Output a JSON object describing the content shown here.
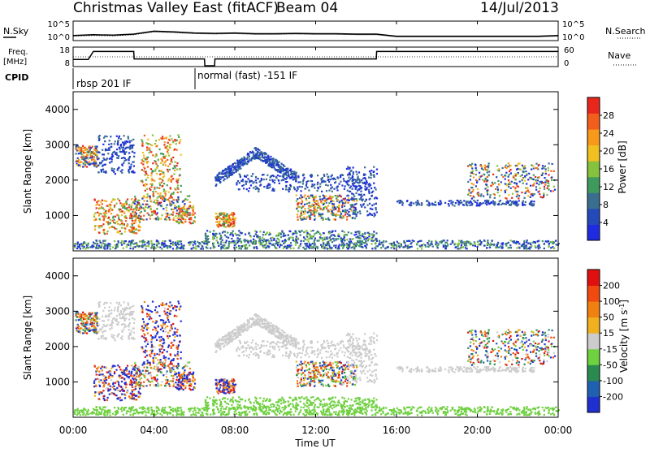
{
  "header": {
    "title": "Christmas Valley East (fitACF)",
    "beam": "Beam 04",
    "date": "14/Jul/2013"
  },
  "status_panel": {
    "left_label": "N.Sky",
    "left_ticks": [
      "10^5",
      "10^0"
    ],
    "right_label": "N.Search",
    "right_ticks": [
      "10^5",
      "10^0"
    ]
  },
  "freq_panel": {
    "left_label_line1": "Freq.",
    "left_label_line2": "[MHz]",
    "left_ticks": [
      "18",
      "8"
    ],
    "right_label": "Nave",
    "right_ticks": [
      "60",
      "0"
    ]
  },
  "cpid": {
    "label": "CPID",
    "segments": [
      {
        "text": "rbsp 201 IF"
      },
      {
        "text": "normal (fast) -151 IF"
      }
    ]
  },
  "x_axis": {
    "title": "Time UT",
    "tick_labels": [
      "00:00",
      "04:00",
      "08:00",
      "12:00",
      "16:00",
      "20:00",
      "00:00"
    ]
  },
  "chart_data": [
    {
      "type": "line",
      "title": "Christmas Valley East (fitACF)",
      "series": [
        {
          "name": "N.Sky",
          "x": [
            "00:00",
            "01:00",
            "02:00",
            "03:00",
            "04:00",
            "05:00",
            "06:00",
            "07:00",
            "08:00",
            "09:00",
            "10:00",
            "11:00",
            "12:00",
            "13:00",
            "14:00",
            "15:00",
            "16:00",
            "17:00",
            "18:00",
            "19:00",
            "20:00",
            "21:00",
            "22:00",
            "23:00",
            "24:00"
          ],
          "values": [
            1.2,
            1.4,
            1.3,
            1.6,
            2.4,
            2.2,
            1.9,
            1.8,
            1.9,
            1.7,
            1.7,
            1.8,
            1.7,
            1.7,
            1.6,
            1.6,
            1.0,
            1.0,
            1.0,
            1.0,
            1.0,
            1.0,
            1.0,
            1.0,
            1.2
          ]
        }
      ]
    },
    {
      "type": "line",
      "series": [
        {
          "name": "Freq.",
          "x": [
            "00:00",
            "00:45",
            "01:00",
            "03:00",
            "03:01",
            "06:30",
            "06:31",
            "07:00",
            "07:01",
            "12:00",
            "15:00",
            "15:01",
            "16:25",
            "16:26",
            "24:00"
          ],
          "values": [
            11.5,
            11.5,
            16,
            16,
            11.8,
            11.8,
            8,
            8,
            11.8,
            11.8,
            11.8,
            16,
            16,
            16,
            16
          ]
        }
      ]
    },
    {
      "type": "heatmap",
      "ylabel": "Slant Range [km]",
      "xlabel": "Time UT",
      "xlim": [
        "00:00",
        "24:00"
      ],
      "ylim": [
        0,
        4500
      ],
      "yticks": [
        1000,
        2000,
        3000,
        4000
      ],
      "colorbar": {
        "label": "Power [dB]",
        "ticks": [
          "4",
          "8",
          "12",
          "16",
          "20",
          "24",
          "28"
        ],
        "range": [
          0,
          30
        ],
        "colors": [
          "#1f2be0",
          "#2449b8",
          "#3a6e8f",
          "#3f9a5e",
          "#86c23e",
          "#f0c020",
          "#f79a1c",
          "#f25f1c",
          "#e8261c"
        ]
      }
    },
    {
      "type": "heatmap",
      "ylabel": "Slant Range [km]",
      "xlabel": "Time UT",
      "xlim": [
        "00:00",
        "24:00"
      ],
      "ylim": [
        0,
        4500
      ],
      "yticks": [
        1000,
        2000,
        3000,
        4000
      ],
      "colorbar": {
        "label": "Velocity [m s-1]",
        "ticks": [
          "200",
          "100",
          "50",
          "15",
          "-15",
          "-50",
          "-100",
          "-200"
        ],
        "range": [
          -250,
          250
        ],
        "colors": [
          "#1f2fd0",
          "#2060b0",
          "#2a8a50",
          "#6fd040",
          "#cccccc",
          "#f0b020",
          "#f08010",
          "#f04a10",
          "#e01010"
        ]
      }
    }
  ]
}
